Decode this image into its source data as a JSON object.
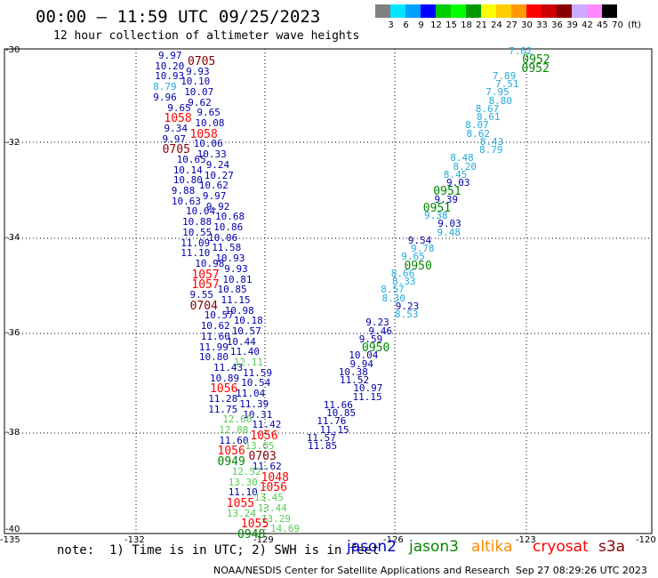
{
  "header": {
    "title": "00:00 – 11:59 UTC 09/25/2023",
    "subtitle": "12 hour collection of altimeter wave heights"
  },
  "scale": {
    "unit": "(ft)",
    "labels": [
      "3",
      "6",
      "9",
      "12",
      "15",
      "18",
      "21",
      "24",
      "27",
      "30",
      "33",
      "36",
      "39",
      "42",
      "45",
      "70"
    ],
    "colors": [
      "#808080",
      "#00e5ff",
      "#00a0ff",
      "#0000ff",
      "#00cc00",
      "#00ff00",
      "#009900",
      "#ffff00",
      "#ffcc00",
      "#ff9900",
      "#ff0000",
      "#cc0000",
      "#880000",
      "#ccaaff",
      "#ff88ff",
      "#000000"
    ]
  },
  "axes": {
    "lat_labels": [
      "-30",
      "-32",
      "-34",
      "-36",
      "-38",
      "-40"
    ],
    "lon_labels": [
      "-135",
      "-132",
      "-129",
      "-126",
      "-123",
      "-120"
    ]
  },
  "note": "note:  1) Time is in UTC; 2) SWH is in feet",
  "satellites": [
    {
      "name": "jason2",
      "color": "#0000cc"
    },
    {
      "name": "jason3",
      "color": "#008800"
    },
    {
      "name": "altika",
      "color": "#ff8800"
    },
    {
      "name": "cryosat",
      "color": "#ff0000"
    },
    {
      "name": "s3a",
      "color": "#880000"
    }
  ],
  "footer": {
    "credit": "NOAA/NESDIS Center for Satellite Applications and Research",
    "timestamp": "Sep 27 08:29:26 UTC 2023"
  },
  "track_west": {
    "labels": [
      {
        "t": "9.97",
        "c": "#0000aa"
      },
      {
        "t": "0705",
        "c": "#880000"
      },
      {
        "t": "10.20",
        "c": "#0000aa"
      },
      {
        "t": "9.93",
        "c": "#0000aa"
      },
      {
        "t": "10.93",
        "c": "#0000aa"
      },
      {
        "t": "10.10",
        "c": "#0000aa"
      },
      {
        "t": "8.79",
        "c": "#22aadd"
      },
      {
        "t": "10.07",
        "c": "#0000aa"
      },
      {
        "t": "9.96",
        "c": "#0000aa"
      },
      {
        "t": "9.62",
        "c": "#0000aa"
      },
      {
        "t": "9.65",
        "c": "#0000aa"
      },
      {
        "t": "9.65",
        "c": "#0000aa"
      },
      {
        "t": "1058",
        "c": "#ff0000"
      },
      {
        "t": "10.08",
        "c": "#0000aa"
      },
      {
        "t": "9.34",
        "c": "#0000aa"
      },
      {
        "t": "1058",
        "c": "#ff0000"
      },
      {
        "t": "9.97",
        "c": "#0000aa"
      },
      {
        "t": "10.06",
        "c": "#0000aa"
      },
      {
        "t": "0705",
        "c": "#880000"
      },
      {
        "t": "10.33",
        "c": "#0000aa"
      },
      {
        "t": "10.65",
        "c": "#0000aa"
      },
      {
        "t": "9.24",
        "c": "#0000aa"
      },
      {
        "t": "10.14",
        "c": "#0000aa"
      },
      {
        "t": "10.27",
        "c": "#0000aa"
      },
      {
        "t": "10.80",
        "c": "#0000aa"
      },
      {
        "t": "10.62",
        "c": "#0000aa"
      },
      {
        "t": "9.88",
        "c": "#0000aa"
      },
      {
        "t": "9.97",
        "c": "#0000aa"
      },
      {
        "t": "10.63",
        "c": "#0000aa"
      },
      {
        "t": "9.92",
        "c": "#0000aa"
      },
      {
        "t": "10.04",
        "c": "#0000aa"
      },
      {
        "t": "10.68",
        "c": "#0000aa"
      },
      {
        "t": "10.88",
        "c": "#0000aa"
      },
      {
        "t": "10.86",
        "c": "#0000aa"
      },
      {
        "t": "10.55",
        "c": "#0000aa"
      },
      {
        "t": "10.06",
        "c": "#0000aa"
      },
      {
        "t": "11.09",
        "c": "#0000aa"
      },
      {
        "t": "11.58",
        "c": "#0000aa"
      },
      {
        "t": "11.10",
        "c": "#0000aa"
      },
      {
        "t": "10.93",
        "c": "#0000aa"
      },
      {
        "t": "10.98",
        "c": "#0000aa"
      },
      {
        "t": "9.93",
        "c": "#0000aa"
      },
      {
        "t": "1057",
        "c": "#ff0000"
      },
      {
        "t": "10.81",
        "c": "#0000aa"
      },
      {
        "t": "1057",
        "c": "#ff0000"
      },
      {
        "t": "10.85",
        "c": "#0000aa"
      },
      {
        "t": "9.55",
        "c": "#0000aa"
      },
      {
        "t": "11.15",
        "c": "#0000aa"
      },
      {
        "t": "0704",
        "c": "#880000"
      },
      {
        "t": "10.98",
        "c": "#0000aa"
      },
      {
        "t": "10.57",
        "c": "#0000aa"
      },
      {
        "t": "10.18",
        "c": "#0000aa"
      },
      {
        "t": "10.62",
        "c": "#0000aa"
      },
      {
        "t": "10.57",
        "c": "#0000aa"
      },
      {
        "t": "11.60",
        "c": "#0000aa"
      },
      {
        "t": "10.44",
        "c": "#0000aa"
      },
      {
        "t": "11.99",
        "c": "#0000aa"
      },
      {
        "t": "11.40",
        "c": "#0000aa"
      },
      {
        "t": "10.80",
        "c": "#0000aa"
      },
      {
        "t": "12.11",
        "c": "#55cc55"
      },
      {
        "t": "11.43",
        "c": "#0000aa"
      },
      {
        "t": "11.59",
        "c": "#0000aa"
      },
      {
        "t": "10.89",
        "c": "#0000aa"
      },
      {
        "t": "10.54",
        "c": "#0000aa"
      },
      {
        "t": "1056",
        "c": "#ff0000"
      },
      {
        "t": "11.04",
        "c": "#0000aa"
      },
      {
        "t": "11.28",
        "c": "#0000aa"
      },
      {
        "t": "11.39",
        "c": "#0000aa"
      },
      {
        "t": "11.75",
        "c": "#0000aa"
      },
      {
        "t": "10.31",
        "c": "#0000aa"
      },
      {
        "t": "12.60",
        "c": "#55cc55"
      },
      {
        "t": "11.42",
        "c": "#0000aa"
      },
      {
        "t": "12.88",
        "c": "#55cc55"
      },
      {
        "t": "1056",
        "c": "#ff0000"
      },
      {
        "t": "11.60",
        "c": "#0000aa"
      },
      {
        "t": "13.05",
        "c": "#55cc55"
      },
      {
        "t": "1056",
        "c": "#ff0000"
      },
      {
        "t": "0703",
        "c": "#880000"
      },
      {
        "t": "0949",
        "c": "#008800"
      },
      {
        "t": "11.62",
        "c": "#0000aa"
      },
      {
        "t": "12.52",
        "c": "#55cc55"
      },
      {
        "t": "1048",
        "c": "#ff0000"
      },
      {
        "t": "13.30",
        "c": "#55cc55"
      },
      {
        "t": "1056",
        "c": "#ff0000"
      },
      {
        "t": "11.10",
        "c": "#0000aa"
      },
      {
        "t": "13.45",
        "c": "#55cc55"
      },
      {
        "t": "1055",
        "c": "#ff0000"
      },
      {
        "t": "13.44",
        "c": "#55cc55"
      },
      {
        "t": "13.24",
        "c": "#55cc55"
      },
      {
        "t": "13.29",
        "c": "#55cc55"
      },
      {
        "t": "1055",
        "c": "#ff0000"
      },
      {
        "t": "14.69",
        "c": "#55cc55"
      },
      {
        "t": "0948",
        "c": "#008800"
      }
    ]
  },
  "track_east": {
    "labels": [
      {
        "t": "7.02",
        "c": "#22aadd"
      },
      {
        "t": "0952",
        "c": "#008800"
      },
      {
        "t": "0952",
        "c": "#008800"
      },
      {
        "t": "7.89",
        "c": "#22aadd"
      },
      {
        "t": "7.51",
        "c": "#22aadd"
      },
      {
        "t": "7.95",
        "c": "#22aadd"
      },
      {
        "t": "8.80",
        "c": "#22aadd"
      },
      {
        "t": "8.67",
        "c": "#22aadd"
      },
      {
        "t": "8.61",
        "c": "#22aadd"
      },
      {
        "t": "8.07",
        "c": "#22aadd"
      },
      {
        "t": "8.62",
        "c": "#22aadd"
      },
      {
        "t": "8.43",
        "c": "#22aadd"
      },
      {
        "t": "8.79",
        "c": "#22aadd"
      },
      {
        "t": "8.48",
        "c": "#22aadd"
      },
      {
        "t": "8.20",
        "c": "#22aadd"
      },
      {
        "t": "8.45",
        "c": "#22aadd"
      },
      {
        "t": "9.03",
        "c": "#0000aa"
      },
      {
        "t": "0951",
        "c": "#008800"
      },
      {
        "t": "9.39",
        "c": "#0000aa"
      },
      {
        "t": "0951",
        "c": "#008800"
      },
      {
        "t": "9.38",
        "c": "#22aadd"
      },
      {
        "t": "9.03",
        "c": "#0000aa"
      },
      {
        "t": "9.48",
        "c": "#22aadd"
      },
      {
        "t": "9.54",
        "c": "#0000aa"
      },
      {
        "t": "9.78",
        "c": "#22aadd"
      },
      {
        "t": "9.65",
        "c": "#22aadd"
      },
      {
        "t": "0950",
        "c": "#008800"
      },
      {
        "t": "8.66",
        "c": "#22aadd"
      },
      {
        "t": "8.33",
        "c": "#22aadd"
      },
      {
        "t": "8.57",
        "c": "#22aadd"
      },
      {
        "t": "8.30",
        "c": "#22aadd"
      },
      {
        "t": "9.23",
        "c": "#0000aa"
      },
      {
        "t": "8.53",
        "c": "#22aadd"
      },
      {
        "t": "9.23",
        "c": "#0000aa"
      },
      {
        "t": "9.46",
        "c": "#0000aa"
      },
      {
        "t": "9.59",
        "c": "#0000aa"
      },
      {
        "t": "0950",
        "c": "#008800"
      },
      {
        "t": "10.04",
        "c": "#0000aa"
      },
      {
        "t": "9.94",
        "c": "#0000aa"
      },
      {
        "t": "10.38",
        "c": "#0000aa"
      },
      {
        "t": "11.52",
        "c": "#0000aa"
      },
      {
        "t": "10.97",
        "c": "#0000aa"
      },
      {
        "t": "11.15",
        "c": "#0000aa"
      },
      {
        "t": "11.66",
        "c": "#0000aa"
      },
      {
        "t": "10.85",
        "c": "#0000aa"
      },
      {
        "t": "11.76",
        "c": "#0000aa"
      },
      {
        "t": "11.15",
        "c": "#0000aa"
      },
      {
        "t": "11.57",
        "c": "#0000aa"
      },
      {
        "t": "11.85",
        "c": "#0000aa"
      }
    ]
  }
}
